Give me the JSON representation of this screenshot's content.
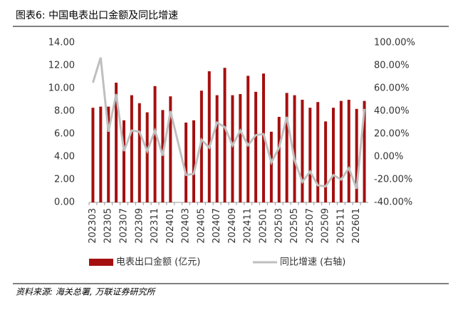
{
  "chart_data": {
    "type": "bar-line",
    "title": "图表6: 中国电表出口金额及同比增速",
    "source": "资料来源: 海关总署, 万联证券研究所",
    "categories": [
      "202303",
      null,
      "202305",
      null,
      "202307",
      null,
      "202309",
      null,
      "202311",
      null,
      "202401",
      null,
      "202403",
      null,
      "202405",
      null,
      "202407",
      null,
      "202409",
      null,
      "202411",
      null,
      "202501",
      null,
      "202503",
      null,
      "202505",
      null,
      "202507",
      null,
      "202509",
      null,
      "202511",
      null,
      "202601",
      null
    ],
    "series": [
      {
        "name": "电表出口金额 (亿元)",
        "type": "bar",
        "color": "#a50f0f",
        "values": [
          8.3,
          8.4,
          8.4,
          10.5,
          7.2,
          9.4,
          8.7,
          7.9,
          10.2,
          8.1,
          9.3,
          null,
          7.0,
          7.2,
          9.8,
          11.5,
          9.4,
          11.8,
          9.4,
          9.5,
          11.1,
          9.7,
          11.3,
          6.2,
          7.5,
          9.6,
          9.4,
          9.0,
          8.3,
          8.8,
          7.1,
          8.3,
          8.9,
          9.0,
          8.2,
          8.9
        ]
      },
      {
        "name": "同比增速 (右轴)",
        "type": "line",
        "axis": "y2",
        "color": "#bfbfbf",
        "values": [
          65,
          87,
          22,
          55,
          5,
          23,
          22,
          5,
          23,
          1,
          40,
          12,
          -16,
          -15,
          15,
          8,
          30,
          26,
          10,
          23,
          10,
          19,
          20,
          -5,
          8,
          35,
          -3,
          -22,
          -13,
          -25,
          -26,
          -16,
          -20,
          -10,
          -28,
          42
        ]
      }
    ],
    "ylim": [
      0,
      14
    ],
    "yticks": [
      {
        "value": 0,
        "label": "0.00"
      },
      {
        "value": 2,
        "label": "2.00"
      },
      {
        "value": 4,
        "label": "4.00"
      },
      {
        "value": 6,
        "label": "6.00"
      },
      {
        "value": 8,
        "label": "8.00"
      },
      {
        "value": 10,
        "label": "10.00"
      },
      {
        "value": 12,
        "label": "12.00"
      },
      {
        "value": 14,
        "label": "14.00"
      }
    ],
    "y2lim": [
      -40,
      100
    ],
    "y2ticks": [
      {
        "value": -40,
        "label": "-40.00%"
      },
      {
        "value": -20,
        "label": "-20.00%"
      },
      {
        "value": 0,
        "label": "0.00%"
      },
      {
        "value": 20,
        "label": "20.00%"
      },
      {
        "value": 40,
        "label": "40.00%"
      },
      {
        "value": 60,
        "label": "60.00%"
      },
      {
        "value": 80,
        "label": "80.00%"
      },
      {
        "value": 100,
        "label": "100.00%"
      }
    ]
  }
}
